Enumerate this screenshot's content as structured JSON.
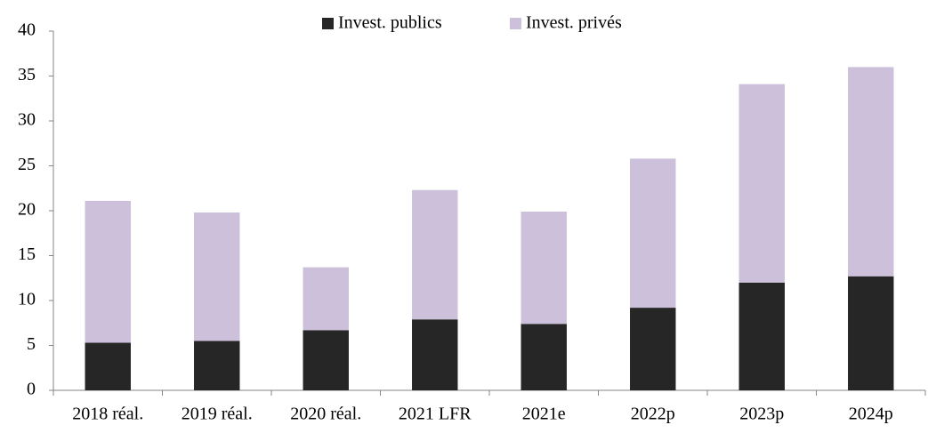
{
  "chart_data": {
    "type": "stacked_bar",
    "categories": [
      "2018 réal.",
      "2019 réal.",
      "2020 réal.",
      "2021 LFR",
      "2021e",
      "2022p",
      "2023p",
      "2024p"
    ],
    "series": [
      {
        "name": "Invest. publics",
        "color": "#262626",
        "values": [
          5.3,
          5.5,
          6.7,
          7.9,
          7.4,
          9.2,
          12.0,
          12.7
        ]
      },
      {
        "name": "Invest. privés",
        "color": "#ccc0da",
        "values": [
          15.8,
          14.3,
          7.0,
          14.4,
          12.5,
          16.6,
          22.1,
          23.3
        ]
      }
    ],
    "ylim": [
      0,
      40
    ],
    "yticks": [
      0,
      5,
      10,
      15,
      20,
      25,
      30,
      35,
      40
    ],
    "legend": "top"
  }
}
